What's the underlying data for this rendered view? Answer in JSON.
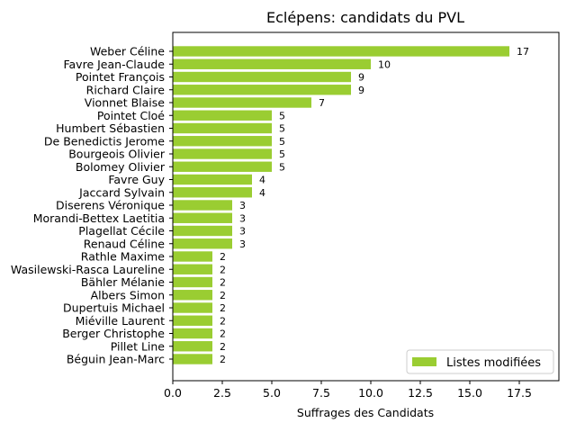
{
  "chart_data": {
    "type": "bar",
    "orientation": "horizontal",
    "title": "Eclépens: candidats du PVL",
    "xlabel": "Suffrages des Candidats",
    "ylabel": "",
    "xlim": [
      0,
      19.5
    ],
    "x_ticks": [
      "0.0",
      "2.5",
      "5.0",
      "7.5",
      "10.0",
      "12.5",
      "15.0",
      "17.5"
    ],
    "x_tick_values": [
      0,
      2.5,
      5,
      7.5,
      10,
      12.5,
      15,
      17.5
    ],
    "grid": false,
    "legend_position": "lower-right",
    "categories": [
      "Weber Céline",
      "Favre Jean-Claude",
      "Pointet François",
      "Richard Claire",
      "Vionnet Blaise",
      "Pointet Cloé",
      "Humbert Sébastien",
      "De Benedictis Jerome",
      "Bourgeois Olivier",
      "Bolomey Olivier",
      "Favre Guy",
      "Jaccard Sylvain",
      "Diserens Véronique",
      "Morandi-Bettex Laetitia",
      "Plagellat Cécile",
      "Renaud Céline",
      "Rathle Maxime",
      "Wasilewski-Rasca Laureline",
      "Bähler Mélanie",
      "Albers Simon",
      "Dupertuis Michael",
      "Miéville Laurent",
      "Berger Christophe",
      "Pillet Line",
      "Béguin Jean-Marc"
    ],
    "series": [
      {
        "name": "Listes modifiées",
        "color": "#9acd32",
        "values": [
          17,
          10,
          9,
          9,
          7,
          5,
          5,
          5,
          5,
          5,
          4,
          4,
          3,
          3,
          3,
          3,
          2,
          2,
          2,
          2,
          2,
          2,
          2,
          2,
          2
        ]
      }
    ]
  }
}
